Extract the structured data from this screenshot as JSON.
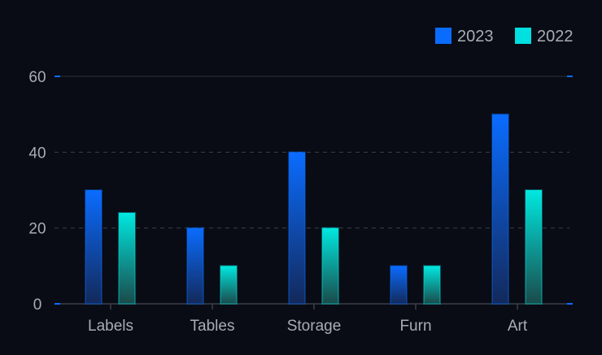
{
  "chart_data": {
    "type": "bar",
    "categories": [
      "Labels",
      "Tables",
      "Storage",
      "Furn",
      "Art"
    ],
    "series": [
      {
        "name": "2023",
        "values": [
          30,
          20,
          40,
          10,
          50
        ],
        "color": "#0a6cff"
      },
      {
        "name": "2022",
        "values": [
          24,
          10,
          20,
          10,
          30
        ],
        "color": "#00e0e0"
      }
    ],
    "ylim": [
      0,
      60
    ],
    "yticks": [
      0,
      20,
      40,
      60
    ],
    "grid": true,
    "legend": "top-right"
  }
}
